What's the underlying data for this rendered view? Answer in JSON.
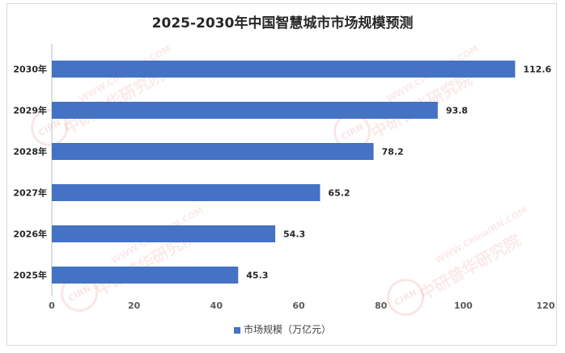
{
  "chart_data": {
    "type": "bar",
    "orientation": "horizontal",
    "title": "2025-2030年中国智慧城市市场规模预测",
    "categories": [
      "2030年",
      "2029年",
      "2028年",
      "2027年",
      "2026年",
      "2025年"
    ],
    "series": [
      {
        "name": "市场规模（万亿元）",
        "values": [
          112.6,
          93.8,
          78.2,
          65.2,
          54.3,
          45.3
        ],
        "color": "#4472c4"
      }
    ],
    "xlim": [
      0,
      120
    ],
    "xticks": [
      0,
      20,
      40,
      60,
      80,
      100,
      120
    ],
    "grid": false,
    "legend_position": "bottom"
  },
  "watermark": {
    "site": "WWW.ChinaIRN.COM",
    "brand": "中研普华研究院",
    "seal": "CIRN"
  }
}
